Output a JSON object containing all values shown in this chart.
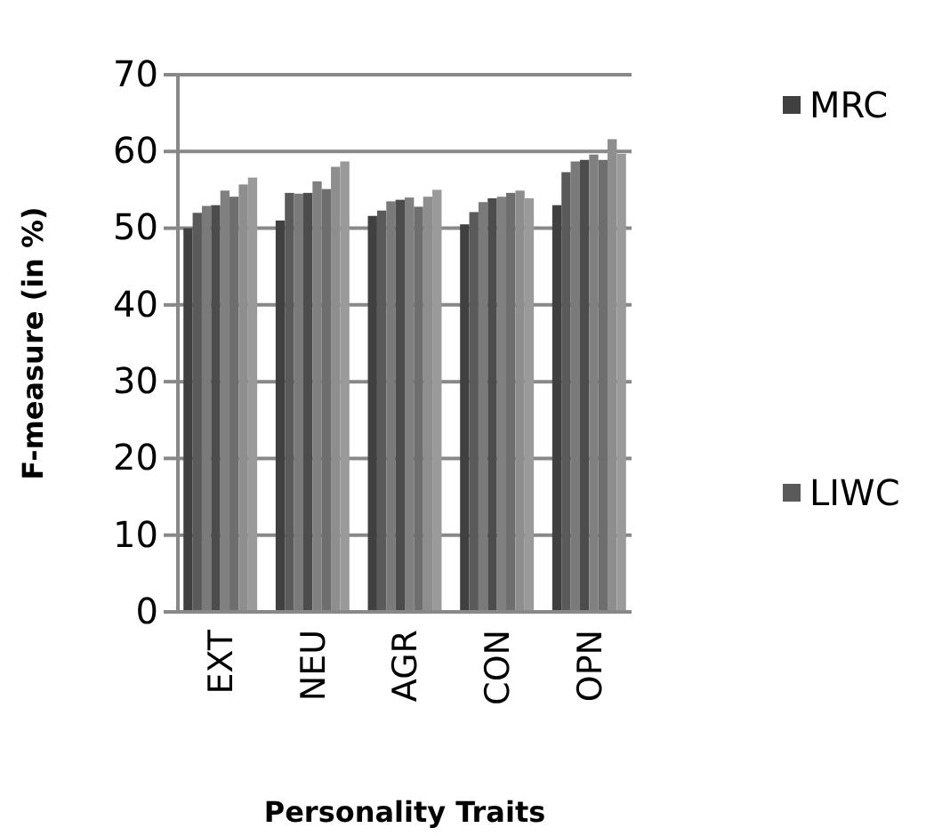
{
  "chart_data": {
    "type": "bar",
    "xlabel": "Personality Traits",
    "ylabel": "F-measure (in %)",
    "categories": [
      "EXT",
      "NEU",
      "AGR",
      "CON",
      "OPN"
    ],
    "series": [
      {
        "name": "MRC",
        "color": "#404040",
        "values": [
          50,
          51,
          51.6,
          50.5,
          53
        ]
      },
      {
        "name": "LIWC",
        "color": "#5a5a5a",
        "values": [
          52,
          54.6,
          52.3,
          52.1,
          57.3
        ]
      },
      {
        "color": "#7a7a7a",
        "values": [
          52.9,
          54.5,
          53.5,
          53.4,
          58.7
        ]
      },
      {
        "color": "#4c4c4c",
        "values": [
          53,
          54.6,
          53.7,
          53.9,
          58.9
        ]
      },
      {
        "color": "#808080",
        "values": [
          54.9,
          56.1,
          54,
          54.1,
          59.6
        ]
      },
      {
        "color": "#6e6e6e",
        "values": [
          54.1,
          55.1,
          52.8,
          54.6,
          58.9
        ]
      },
      {
        "color": "#8e8e8e",
        "values": [
          55.7,
          58,
          54.1,
          54.9,
          61.6
        ]
      },
      {
        "color": "#9a9a9a",
        "values": [
          56.6,
          58.7,
          55,
          53.9,
          59.7
        ]
      }
    ],
    "ylim": [
      0,
      70
    ],
    "yticks": [
      0,
      10,
      20,
      30,
      40,
      50,
      60,
      70
    ],
    "grid": "y",
    "legend": "right"
  }
}
